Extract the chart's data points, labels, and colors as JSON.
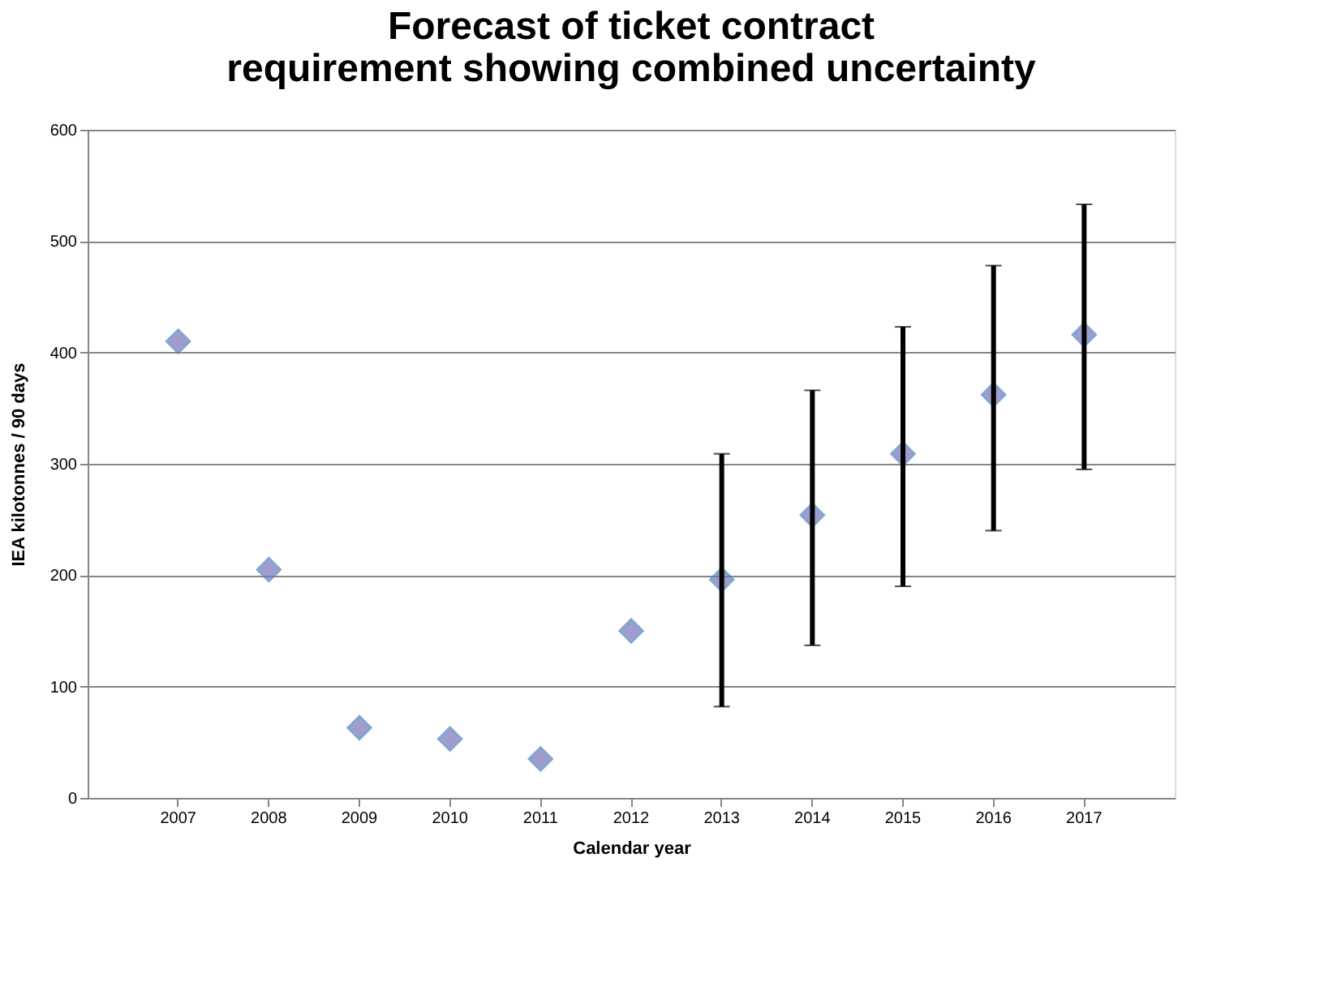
{
  "chart_data": {
    "type": "scatter",
    "title": "Forecast of ticket contract requirement showing combined uncertainty",
    "xlabel": "Calendar year",
    "ylabel": "IEA kilotonnes / 90 days",
    "categories": [
      "2007",
      "2008",
      "2009",
      "2010",
      "2011",
      "2012",
      "2013",
      "2014",
      "2015",
      "2016",
      "2017"
    ],
    "values": [
      410,
      205,
      63,
      53,
      35,
      150,
      196,
      254,
      309,
      362,
      416
    ],
    "errors": [
      null,
      null,
      null,
      null,
      null,
      null,
      [
        82,
        309
      ],
      [
        137,
        366
      ],
      [
        190,
        423
      ],
      [
        240,
        478
      ],
      [
        295,
        533
      ]
    ],
    "color": "#7b72b8",
    "marker": "diamond",
    "ylim": [
      0,
      600
    ],
    "yticks": [
      0,
      100,
      200,
      300,
      400,
      500,
      600
    ],
    "grid": "y"
  }
}
